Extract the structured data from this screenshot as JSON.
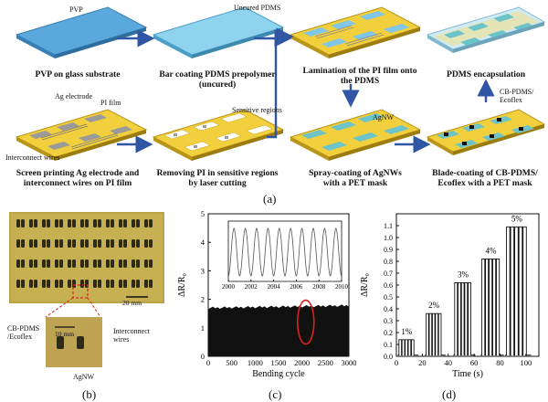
{
  "panel_a": {
    "letter": "(a)",
    "steps": [
      {
        "caption": "PVP on glass substrate"
      },
      {
        "caption": "Bar coating PDMS prepolymer\n(uncured)"
      },
      {
        "caption": "Lamination of the PI film onto\nthe PDMS"
      },
      {
        "caption": "PDMS encapsulation"
      },
      {
        "caption": "Screen printing Ag electrode and\ninterconnect wires on PI film"
      },
      {
        "caption": "Removing PI in sensitive regions\nby laser cutting"
      },
      {
        "caption": "Spray-coating of AgNWs\nwith a PET mask"
      },
      {
        "caption": "Blade-coating of CB-PDMS/\nEcoflex with a PET mask"
      }
    ],
    "labels": {
      "pvp": "PVP",
      "uncured_pdms": "Uncured PDMS",
      "ag_electrode": "Ag electrode",
      "pi_film": "PI film",
      "interconnect": "Interconnect wires",
      "sensitive": "Sensitive regions",
      "agnw": "AgNW",
      "cb_pdms": "CB-PDMS/\nEcoflex"
    }
  },
  "panel_b": {
    "letter": "(b)",
    "scale_main": "20 mm",
    "scale_inset": "10 mm",
    "label_cb": "CB-PDMS\n/Ecoflex",
    "label_interconnect": "Interconnect\nwires",
    "label_agnw": "AgNW"
  },
  "panel_c": {
    "letter": "(c)"
  },
  "panel_d": {
    "letter": "(d)"
  },
  "colors": {
    "arrow": "#2f55a4",
    "pi": "#f2cf3c",
    "pdms": "#7fc6e8",
    "red": "#d9221f"
  },
  "chart_data": [
    {
      "type": "area",
      "xlabel": "Bending cycle",
      "ylabel": "ΔR/R₀",
      "xlim": [
        0,
        3000
      ],
      "ylim": [
        0,
        5
      ],
      "xticks": [
        0,
        500,
        1000,
        1500,
        2000,
        2500,
        3000
      ],
      "yticks": [
        0,
        1,
        2,
        3,
        4,
        5
      ],
      "band": {
        "x": [
          0,
          3000
        ],
        "min": 0.0,
        "max_start": 1.7,
        "max_end": 1.78
      },
      "highlight_ellipse_x": 2080,
      "inset": {
        "type": "line",
        "xlim": [
          2000,
          2010
        ],
        "xticks": [
          2000,
          2002,
          2004,
          2006,
          2008,
          2010
        ],
        "cycles": 10
      }
    },
    {
      "type": "line",
      "xlabel": "Time (s)",
      "ylabel": "ΔR/R₀",
      "xlim": [
        0,
        110
      ],
      "ylim": [
        0,
        1.2
      ],
      "xticks": [
        0,
        20,
        40,
        60,
        80,
        100
      ],
      "yticks": [
        0.0,
        0.1,
        0.2,
        0.3,
        0.4,
        0.5,
        0.6,
        0.7,
        0.8,
        0.9,
        1.0,
        1.1
      ],
      "series": [
        {
          "name": "1%",
          "start": 2,
          "end": 14,
          "value": 0.14
        },
        {
          "name": "2%",
          "start": 23,
          "end": 35,
          "value": 0.36
        },
        {
          "name": "3%",
          "start": 45,
          "end": 58,
          "value": 0.62
        },
        {
          "name": "4%",
          "start": 66,
          "end": 80,
          "value": 0.82
        },
        {
          "name": "5%",
          "start": 85,
          "end": 101,
          "value": 1.09
        }
      ]
    }
  ]
}
